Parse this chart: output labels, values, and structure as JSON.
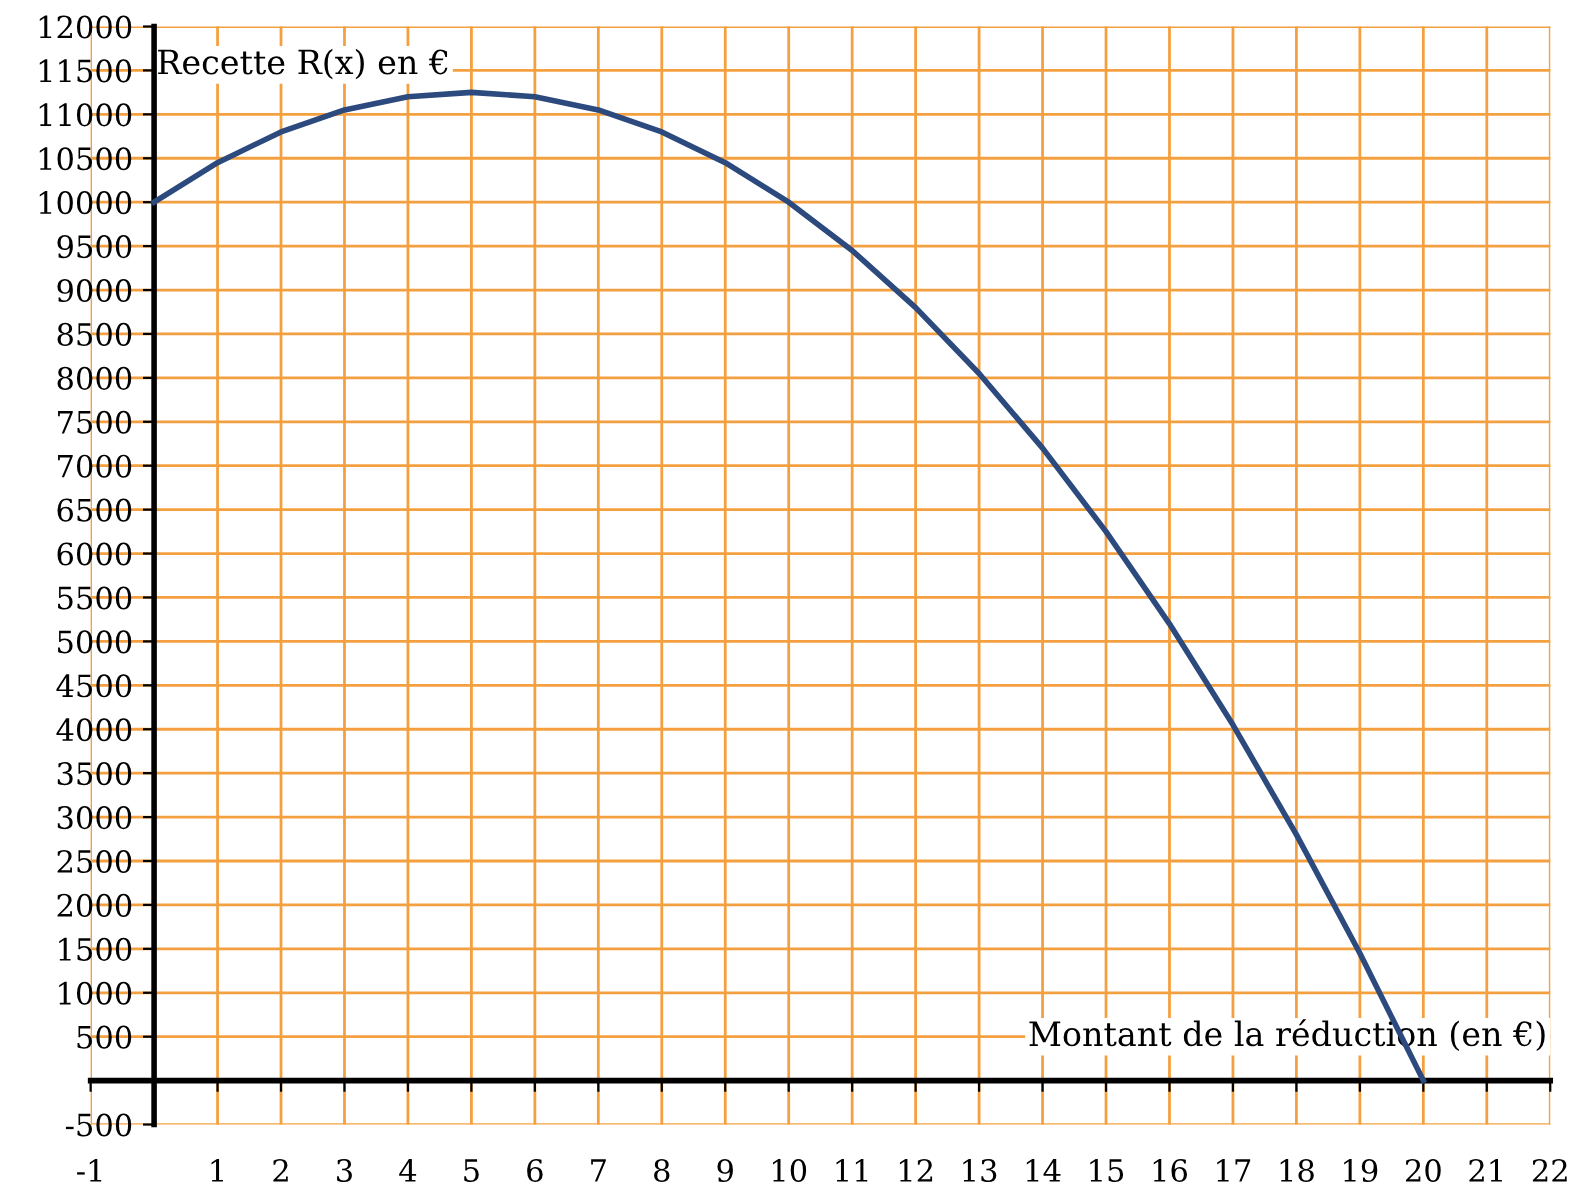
{
  "chart_data": {
    "type": "line",
    "xlabel": "Montant de la réduction (en €)",
    "ylabel": "Recette R(x) en €",
    "x": [
      0,
      1,
      2,
      3,
      4,
      5,
      6,
      7,
      8,
      9,
      10,
      11,
      12,
      13,
      14,
      15,
      16,
      17,
      18,
      19,
      20
    ],
    "series": [
      {
        "color": "#2c4a7e",
        "values": [
          10000,
          10450,
          10800,
          11050,
          11200,
          11250,
          11200,
          11050,
          10800,
          10450,
          10000,
          9450,
          8800,
          8050,
          7200,
          6250,
          5200,
          4050,
          2800,
          1450,
          0
        ]
      }
    ],
    "xlim": [
      -1,
      22
    ],
    "ylim": [
      -500,
      12000
    ],
    "xticks": [
      -1,
      1,
      2,
      3,
      4,
      5,
      6,
      7,
      8,
      9,
      10,
      11,
      12,
      13,
      14,
      15,
      16,
      17,
      18,
      19,
      20,
      21,
      22
    ],
    "yticks": [
      -500,
      500,
      1000,
      1500,
      2000,
      2500,
      3000,
      3500,
      4000,
      4500,
      5000,
      5500,
      6000,
      6500,
      7000,
      7500,
      8000,
      8500,
      9000,
      9500,
      10000,
      10500,
      11000,
      11500,
      12000
    ],
    "grid": true,
    "marker": "none",
    "line_style": "solid"
  }
}
